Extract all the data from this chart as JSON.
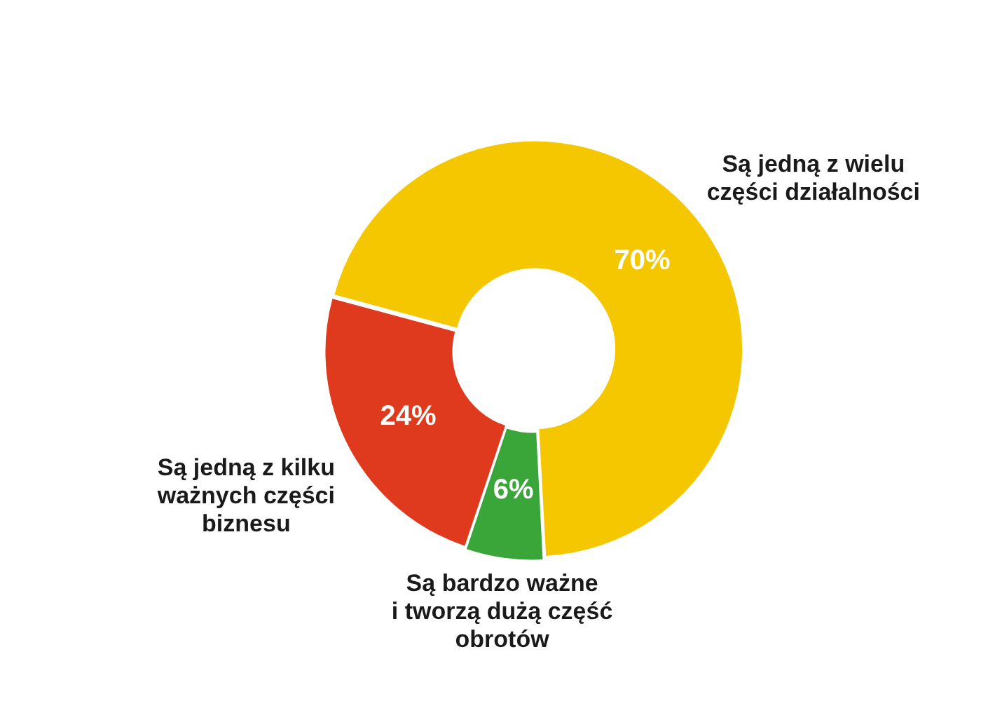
{
  "chart_data": {
    "type": "donut",
    "categories": [
      "Są jedną z wielu\nczęści działalności",
      "Są bardzo ważne\ni tworzą dużą część\nobrotów",
      "Są jedną z kilku\nważnych części\nbiznesu"
    ],
    "values": [
      70,
      6,
      24
    ],
    "colors": [
      "#f4c700",
      "#3aa63a",
      "#e03a1e"
    ],
    "value_labels": [
      "70%",
      "6%",
      "24%"
    ]
  }
}
